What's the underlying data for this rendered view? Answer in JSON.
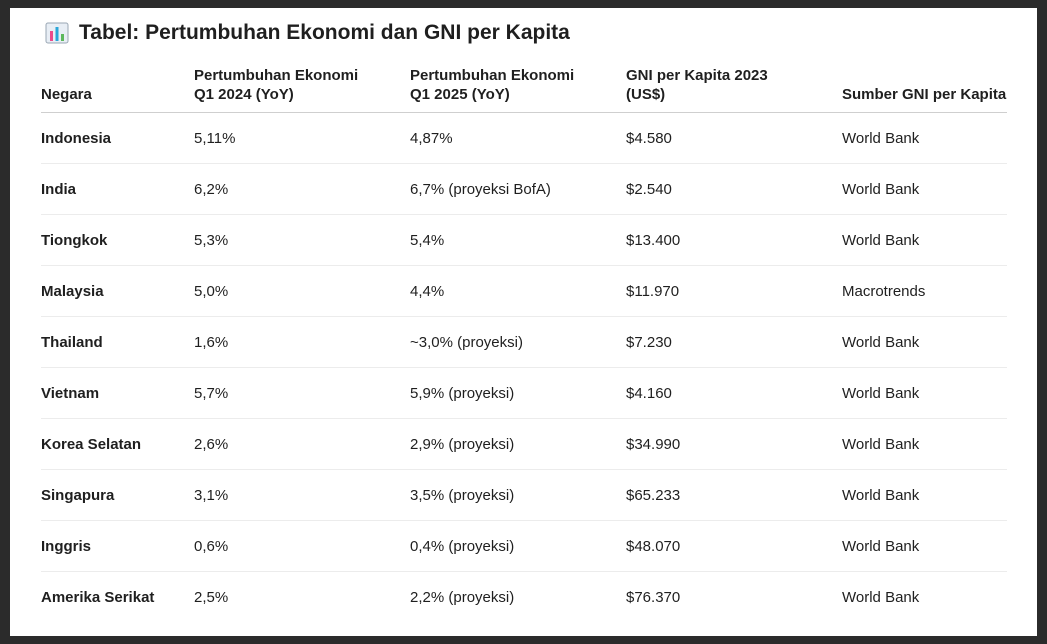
{
  "header": {
    "title": "Tabel: Pertumbuhan Ekonomi dan GNI per Kapita"
  },
  "table": {
    "columns": [
      [
        "Negara"
      ],
      [
        "Pertumbuhan Ekonomi",
        "Q1 2024 (YoY)"
      ],
      [
        "Pertumbuhan Ekonomi",
        "Q1 2025 (YoY)"
      ],
      [
        "GNI per Kapita 2023",
        "(US$)"
      ],
      [
        "Sumber GNI per Kapita"
      ]
    ],
    "rows": [
      [
        "Indonesia",
        "5,11%",
        "4,87%",
        "$4.580",
        "World Bank"
      ],
      [
        "India",
        "6,2%",
        "6,7% (proyeksi BofA)",
        "$2.540",
        "World Bank"
      ],
      [
        "Tiongkok",
        "5,3%",
        "5,4%",
        "$13.400",
        "World Bank"
      ],
      [
        "Malaysia",
        "5,0%",
        "4,4%",
        "$11.970",
        "Macrotrends"
      ],
      [
        "Thailand",
        "1,6%",
        "~3,0% (proyeksi)",
        "$7.230",
        "World Bank"
      ],
      [
        "Vietnam",
        "5,7%",
        "5,9% (proyeksi)",
        "$4.160",
        "World Bank"
      ],
      [
        "Korea Selatan",
        "2,6%",
        "2,9% (proyeksi)",
        "$34.990",
        "World Bank"
      ],
      [
        "Singapura",
        "3,1%",
        "3,5% (proyeksi)",
        "$65.233",
        "World Bank"
      ],
      [
        "Inggris",
        "0,6%",
        "0,4% (proyeksi)",
        "$48.070",
        "World Bank"
      ],
      [
        "Amerika Serikat",
        "2,5%",
        "2,2% (proyeksi)",
        "$76.370",
        "World Bank"
      ]
    ]
  }
}
